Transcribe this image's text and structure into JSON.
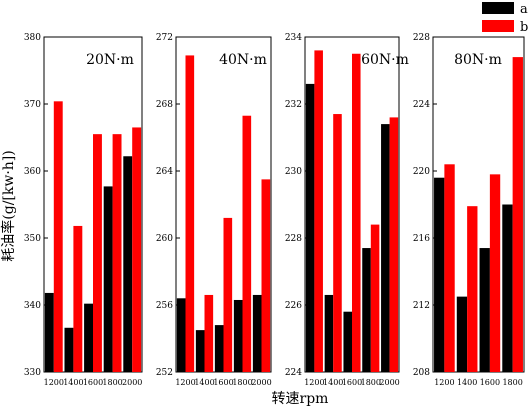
{
  "chart_data": {
    "type": "bar",
    "xlabel": "转速rpm",
    "ylabel": "耗油率(g/[kw·h])",
    "legend": {
      "placement": "top-right",
      "entries": [
        {
          "label": "a",
          "color": "#000000"
        },
        {
          "label": "b",
          "color": "#ff0000"
        }
      ]
    },
    "panels": [
      {
        "title": "20N·m",
        "categories": [
          "1200",
          "1400",
          "1600",
          "1800",
          "2000"
        ],
        "ylim": [
          330,
          380
        ],
        "yticks": [
          330,
          340,
          350,
          360,
          370,
          380
        ],
        "series": [
          {
            "name": "a",
            "color": "#000000",
            "values": [
              341.8,
              336.6,
              340.2,
              357.7,
              362.2
            ]
          },
          {
            "name": "b",
            "color": "#ff0000",
            "values": [
              370.4,
              351.8,
              365.5,
              365.5,
              366.5
            ]
          }
        ]
      },
      {
        "title": "40N·m",
        "categories": [
          "1200",
          "1400",
          "1600",
          "1800",
          "2000"
        ],
        "ylim": [
          252,
          272
        ],
        "yticks": [
          252,
          256,
          260,
          264,
          268,
          272
        ],
        "series": [
          {
            "name": "a",
            "color": "#000000",
            "values": [
              256.4,
              254.5,
              254.8,
              256.3,
              256.6
            ]
          },
          {
            "name": "b",
            "color": "#ff0000",
            "values": [
              270.9,
              256.6,
              261.2,
              267.3,
              263.5
            ]
          }
        ]
      },
      {
        "title": "60N·m",
        "categories": [
          "1200",
          "1400",
          "1600",
          "1800",
          "2000"
        ],
        "ylim": [
          224,
          234
        ],
        "yticks": [
          224,
          226,
          228,
          230,
          232,
          234
        ],
        "series": [
          {
            "name": "a",
            "color": "#000000",
            "values": [
              232.6,
              226.3,
              225.8,
              227.7,
              231.4
            ]
          },
          {
            "name": "b",
            "color": "#ff0000",
            "values": [
              233.6,
              231.7,
              233.5,
              228.4,
              231.6
            ]
          }
        ]
      },
      {
        "title": "80N·m",
        "categories": [
          "1200",
          "1400",
          "1600",
          "1800"
        ],
        "ylim": [
          208,
          228
        ],
        "yticks": [
          208,
          212,
          216,
          220,
          224,
          228
        ],
        "series": [
          {
            "name": "a",
            "color": "#000000",
            "values": [
              219.6,
              212.5,
              215.4,
              218.0
            ]
          },
          {
            "name": "b",
            "color": "#ff0000",
            "values": [
              220.4,
              217.9,
              219.8,
              226.8
            ]
          }
        ]
      }
    ]
  }
}
